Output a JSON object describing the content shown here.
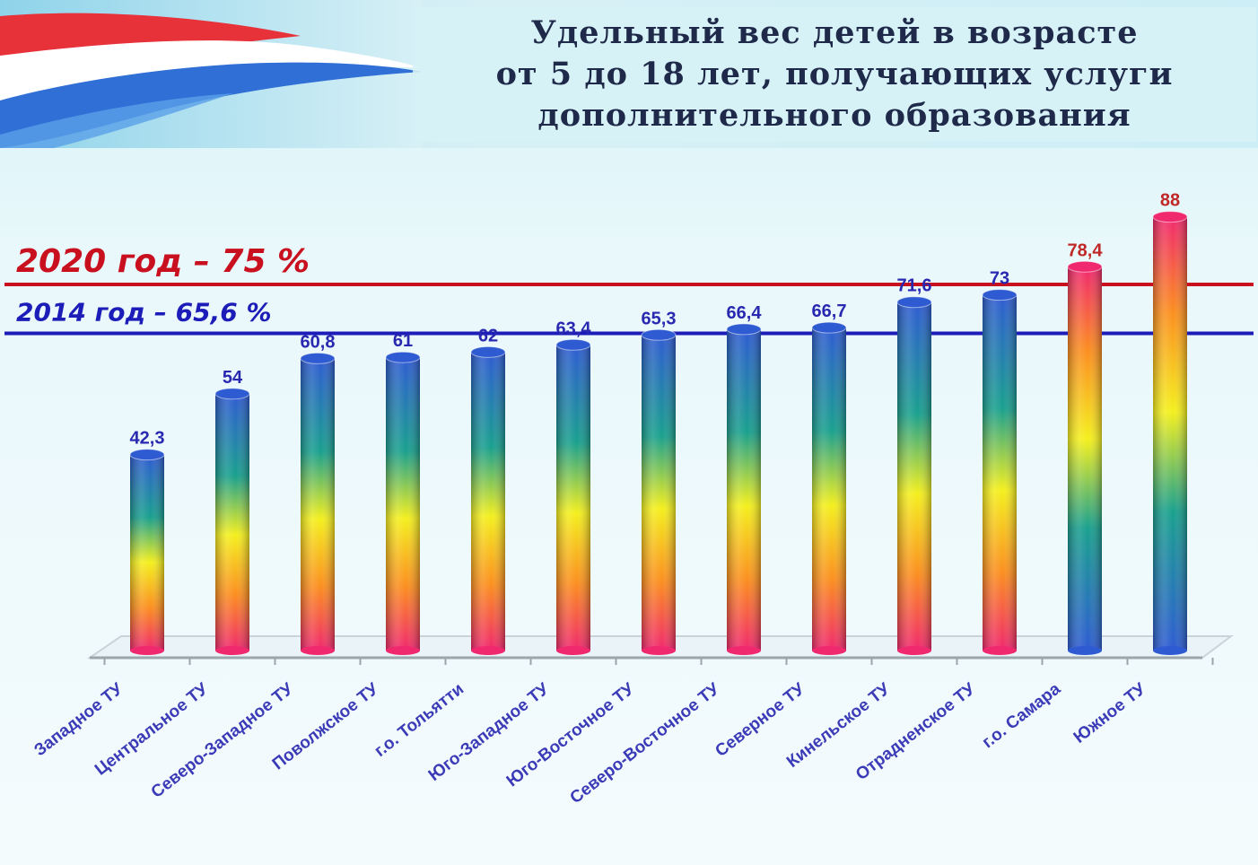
{
  "title_lines": [
    "Удельный вес детей в возрасте",
    "от 5 до 18 лет, получающих услуги",
    "дополнительного образования"
  ],
  "colors": {
    "target_line": "#c9101e",
    "baseline_line": "#1c1cb8",
    "label_blue": "#2828b0",
    "label_red": "#c02828",
    "bar_blue": "#2f5bd2",
    "bar_teal": "#1aa08e",
    "bar_yellow": "#f4ef1e",
    "bar_orange": "#fb8f20",
    "bar_pink": "#f0286e"
  },
  "chart_data": {
    "type": "bar",
    "title": "Удельный вес детей в возрасте от 5 до 18 лет, получающих услуги дополнительного образования",
    "xlabel": "",
    "ylabel": "",
    "ylim": [
      0,
      90
    ],
    "grid": false,
    "legend": "none",
    "categories": [
      "Западное ТУ",
      "Центральное ТУ",
      "Северо-Западное ТУ",
      "Поволжское ТУ",
      "г.о. Тольятти",
      "Юго-Западное ТУ",
      "Юго-Восточное ТУ",
      "Северо-Восточное ТУ",
      "Северное ТУ",
      "Кинельское ТУ",
      "Отрадненское ТУ",
      "г.о. Самара",
      "Южное ТУ"
    ],
    "values": [
      42.3,
      54,
      60.8,
      61,
      62,
      63.4,
      65.3,
      66.4,
      66.7,
      71.6,
      73,
      78.4,
      88
    ],
    "value_labels": [
      "42,3",
      "54",
      "60,8",
      "61",
      "62",
      "63,4",
      "65,3",
      "66,4",
      "66,7",
      "71,6",
      "73",
      "78,4",
      "88"
    ],
    "reference_lines": [
      {
        "label": "2020 год – 75 %",
        "value": 75
      },
      {
        "label": "2014 год – 65,6 %",
        "value": 65.6
      }
    ]
  }
}
